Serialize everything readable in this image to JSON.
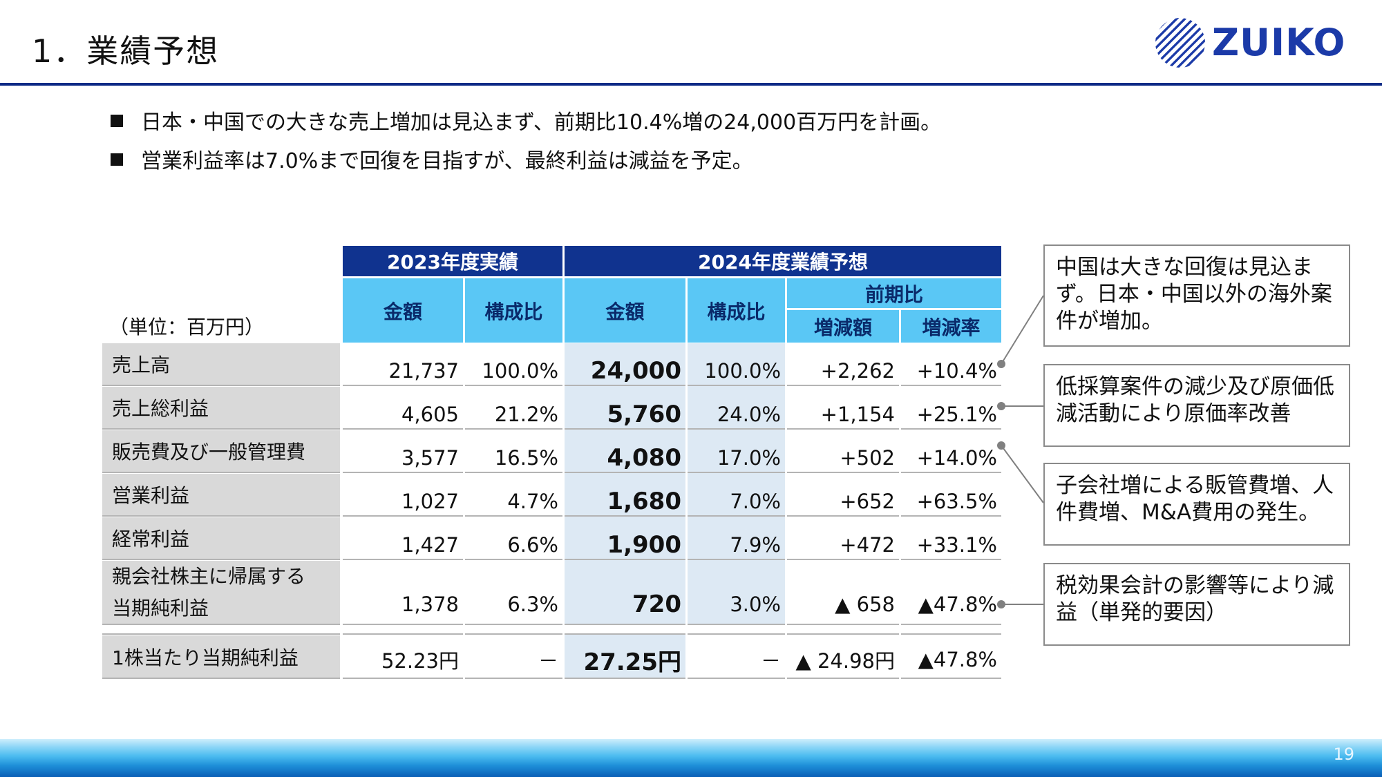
{
  "header": {
    "title": "1．業績予想",
    "logo_text": "ZUIKO"
  },
  "bullets": [
    "日本・中国での大きな売上増加は見込まず、前期比10.4%増の24,000百万円を計画。",
    "営業利益率は7.0%まで回復を目指すが、最終利益は減益を予定。"
  ],
  "table": {
    "unit_label": "（単位：百万円）",
    "header_2023": "2023年度実績",
    "header_2024": "2024年度業績予想",
    "col_amount": "金額",
    "col_ratio": "構成比",
    "col_yoy": "前期比",
    "col_change": "増減額",
    "col_rate": "増減率",
    "rows": [
      {
        "label": "売上高",
        "a23": "21,737",
        "r23": "100.0%",
        "a24": "24,000",
        "r24": "100.0%",
        "chg": "+2,262",
        "rate": "+10.4%"
      },
      {
        "label": "売上総利益",
        "a23": "4,605",
        "r23": "21.2%",
        "a24": "5,760",
        "r24": "24.0%",
        "chg": "+1,154",
        "rate": "+25.1%"
      },
      {
        "label": "販売費及び一般管理費",
        "a23": "3,577",
        "r23": "16.5%",
        "a24": "4,080",
        "r24": "17.0%",
        "chg": "+502",
        "rate": "+14.0%"
      },
      {
        "label": "営業利益",
        "a23": "1,027",
        "r23": "4.7%",
        "a24": "1,680",
        "r24": "7.0%",
        "chg": "+652",
        "rate": "+63.5%"
      },
      {
        "label": "経常利益",
        "a23": "1,427",
        "r23": "6.6%",
        "a24": "1,900",
        "r24": "7.9%",
        "chg": "+472",
        "rate": "+33.1%"
      }
    ],
    "net_row": {
      "label_line1": "親会社株主に帰属する",
      "label_line2": "当期純利益",
      "a23": "1,378",
      "r23": "6.3%",
      "a24": "720",
      "r24": "3.0%",
      "chg": "▲ 658",
      "rate": "▲47.8%"
    },
    "eps_row": {
      "label": "1株当たり当期純利益",
      "a23": "52.23円",
      "r23": "－",
      "a24": "27.25円",
      "r24": "－",
      "chg": "▲ 24.98円",
      "rate": "▲47.8%"
    }
  },
  "callouts": [
    "中国は大きな回復は見込まず。日本・中国以外の海外案件が増加。",
    "低採算案件の減少及び原価低減活動により原価率改善",
    "子会社増による販管費増、人件費増、M&A費用の発生。",
    "税効果会計の影響等により減益（単発的要因）"
  ],
  "footer": {
    "page_number": "19"
  },
  "colors": {
    "navy": "#10338f",
    "sky": "#5ac7f5",
    "highlight": "#dde9f4",
    "label_gray": "#d9d9d9"
  }
}
